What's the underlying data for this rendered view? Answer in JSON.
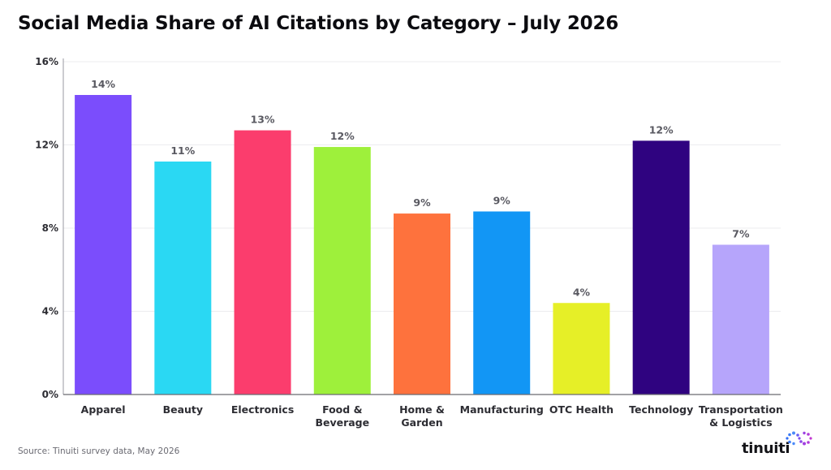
{
  "title": "Social Media Share of AI Citations by Category – July 2026",
  "source": "Source: Tinuiti survey data, May 2026",
  "logo": {
    "text": "tinuiti",
    "icon": "tinuiti-infinity-icon"
  },
  "chart_data": {
    "type": "bar",
    "title": "Social Media Share of AI Citations by Category – July 2026",
    "xlabel": "",
    "ylabel": "",
    "ylim": [
      0,
      16
    ],
    "yticks": [
      0,
      4,
      8,
      12,
      16
    ],
    "ytick_labels": [
      "0%",
      "4%",
      "8%",
      "12%",
      "16%"
    ],
    "grid": true,
    "legend": "none",
    "categories": [
      [
        "Apparel"
      ],
      [
        "Beauty"
      ],
      [
        "Electronics"
      ],
      [
        "Food &",
        "Beverage"
      ],
      [
        "Home &",
        "Garden"
      ],
      [
        "Manufacturing"
      ],
      [
        "OTC Health"
      ],
      [
        "Technology"
      ],
      [
        "Transportation",
        "& Logistics"
      ]
    ],
    "values": [
      14.4,
      11.2,
      12.7,
      11.9,
      8.7,
      8.8,
      4.4,
      12.2,
      7.2
    ],
    "data_labels": [
      "14%",
      "11%",
      "13%",
      "12%",
      "9%",
      "9%",
      "4%",
      "12%",
      "7%"
    ],
    "colors": [
      "#7b4dfc",
      "#2ad8f3",
      "#fb3d6d",
      "#9ef03b",
      "#fe723d",
      "#1296f5",
      "#e6ef27",
      "#2f0380",
      "#b6a5fb"
    ]
  }
}
